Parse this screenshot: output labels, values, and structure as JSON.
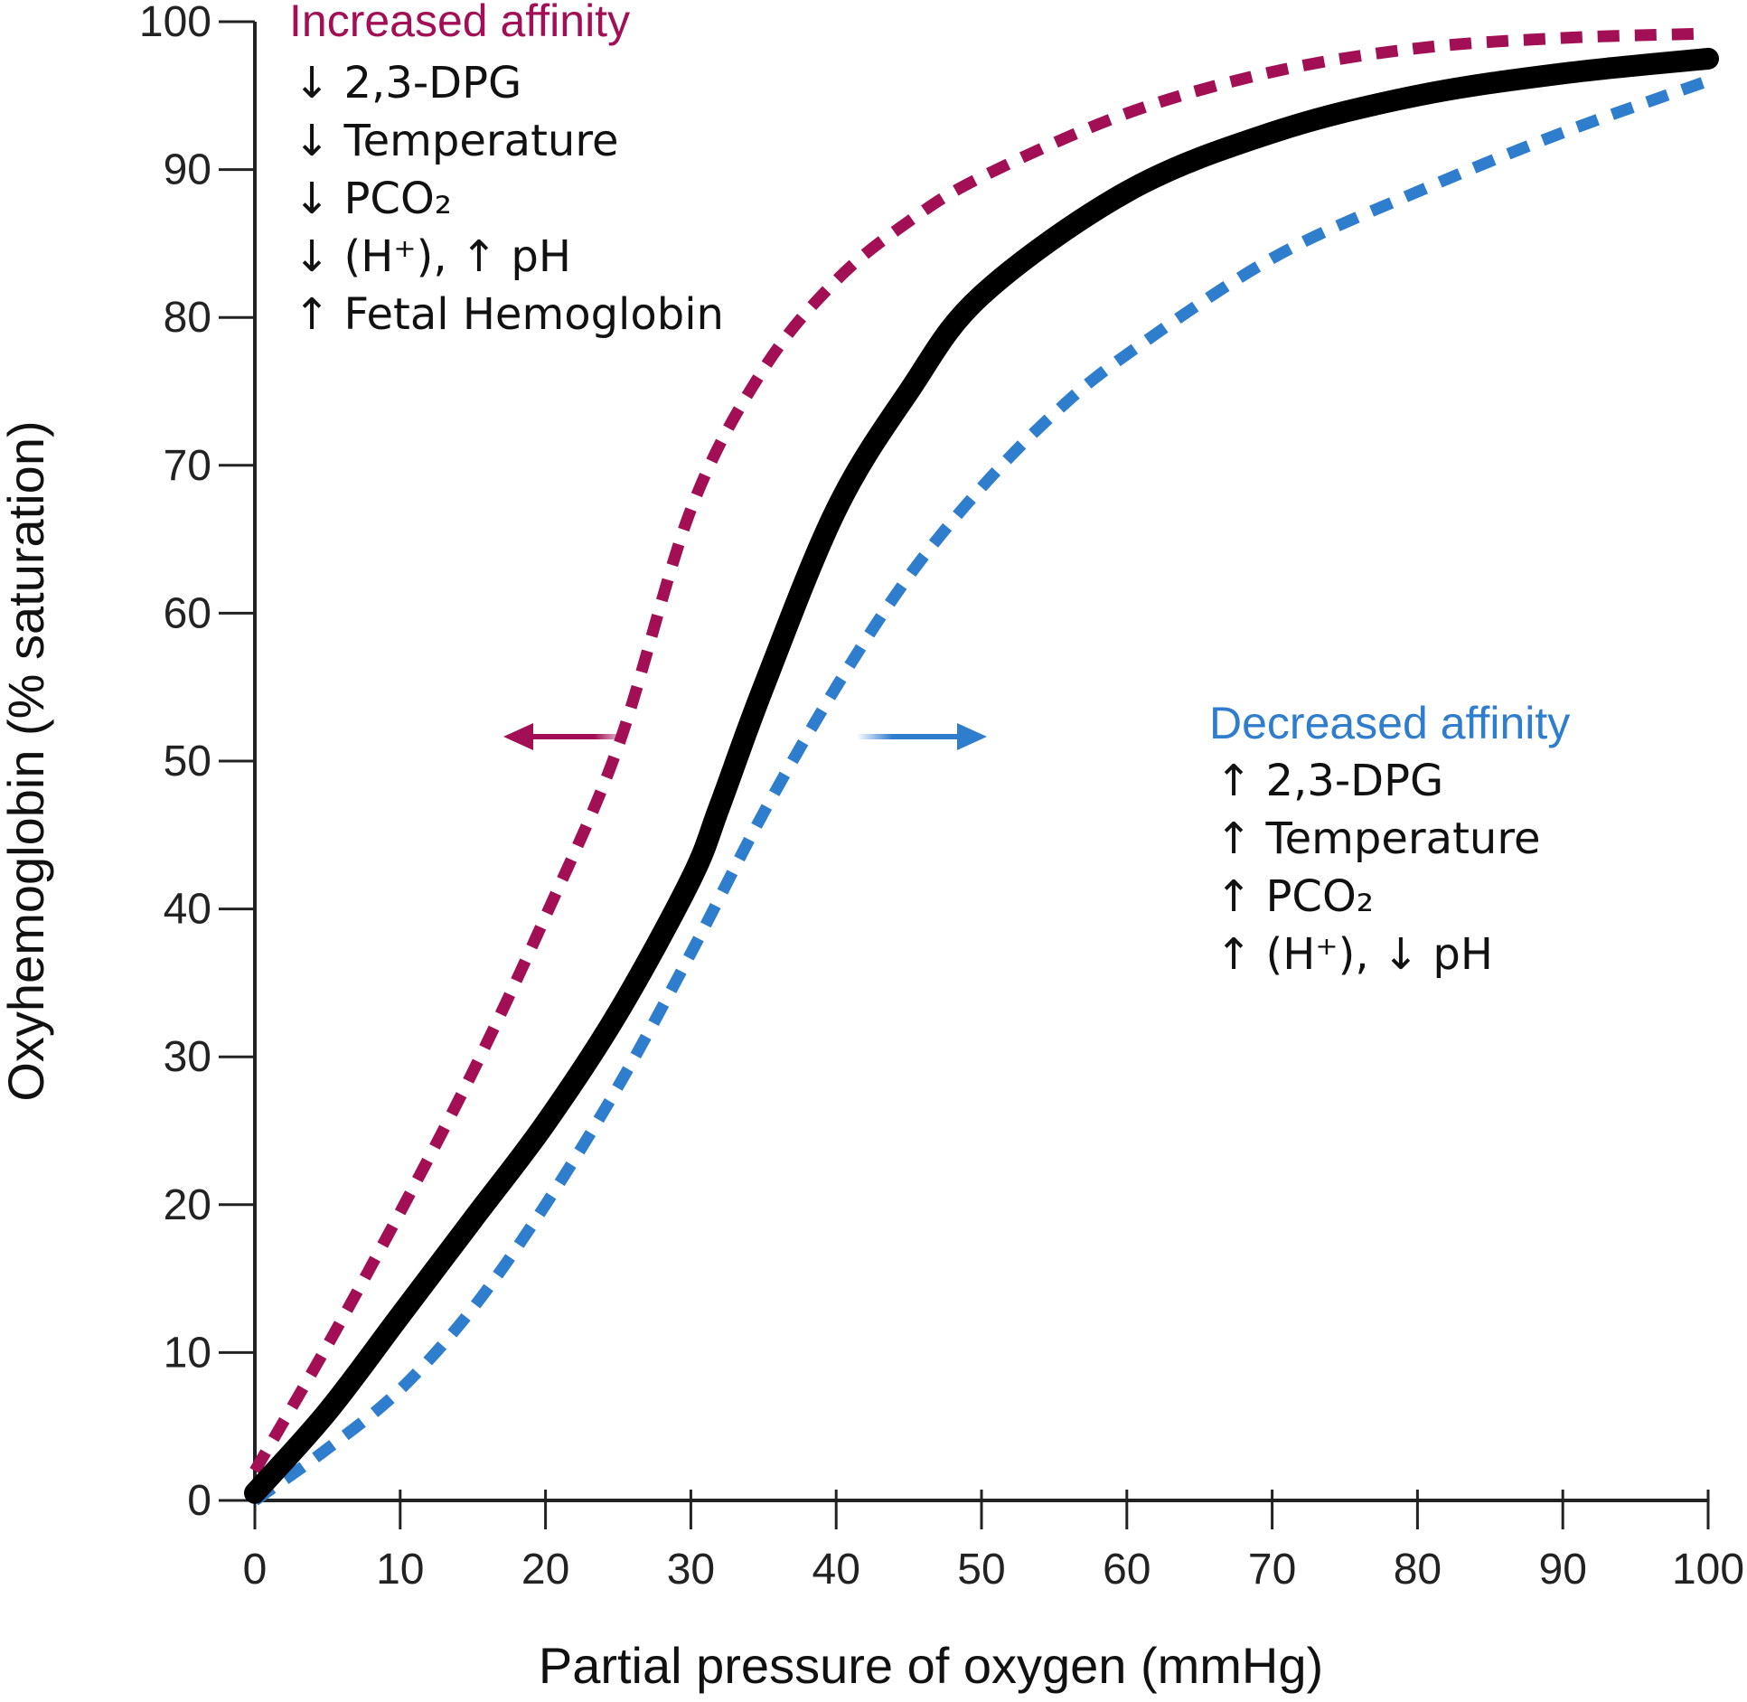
{
  "chart_data": {
    "type": "line",
    "xlabel": "Partial pressure of oxygen (mmHg)",
    "ylabel": "Oxyhemoglobin (% saturation)",
    "xlim": [
      0,
      100
    ],
    "ylim": [
      0,
      100
    ],
    "x_ticks": [
      "0",
      "10",
      "20",
      "30",
      "40",
      "50",
      "60",
      "70",
      "80",
      "90",
      "100"
    ],
    "y_ticks": [
      "0",
      "10",
      "20",
      "30",
      "40",
      "50",
      "60",
      "70",
      "80",
      "90",
      "100"
    ],
    "grid": false,
    "series": [
      {
        "color": "#000000",
        "style": "solid",
        "x": [
          0,
          5,
          10,
          15,
          20,
          25,
          30,
          32,
          35,
          40,
          45,
          50,
          60,
          70,
          80,
          90,
          100
        ],
        "y": [
          0.5,
          6,
          12.5,
          19,
          25.5,
          33,
          42,
          47,
          55,
          67,
          75,
          81.5,
          88.5,
          92.5,
          95,
          96.5,
          97.5
        ]
      },
      {
        "color": "#a30f55",
        "style": "dashed",
        "x": [
          0,
          5,
          10,
          15,
          20,
          25,
          30,
          35,
          40,
          45,
          50,
          60,
          70,
          80,
          90,
          100
        ],
        "y": [
          2,
          10.5,
          19.5,
          29,
          39.5,
          51,
          67,
          76.5,
          82.5,
          86.5,
          89.5,
          93.8,
          96.6,
          98.2,
          98.9,
          99.2
        ]
      },
      {
        "color": "#2f7dcd",
        "style": "dashed",
        "x": [
          0,
          5,
          10,
          15,
          20,
          25,
          30,
          35,
          40,
          45,
          50,
          55,
          60,
          70,
          80,
          90,
          100
        ],
        "y": [
          0,
          3.5,
          7.5,
          13,
          20,
          28,
          37,
          46.5,
          55,
          62.5,
          68.5,
          73.5,
          77.5,
          84,
          88.5,
          92.5,
          96
        ]
      }
    ],
    "annotations": {
      "increased": {
        "title": "Increased affinity",
        "color": "#a30f55",
        "lines": [
          "↓ 2,3-DPG",
          "↓ Temperature",
          "↓ PCO₂",
          "↓ (H⁺), ↑ pH",
          "↑ Fetal Hemoglobin"
        ]
      },
      "decreased": {
        "title": "Decreased affinity",
        "color": "#2f7dcd",
        "lines": [
          "↑ 2,3-DPG",
          "↑ Temperature",
          "↑ PCO₂",
          "↑ (H⁺), ↓ pH"
        ]
      }
    }
  }
}
